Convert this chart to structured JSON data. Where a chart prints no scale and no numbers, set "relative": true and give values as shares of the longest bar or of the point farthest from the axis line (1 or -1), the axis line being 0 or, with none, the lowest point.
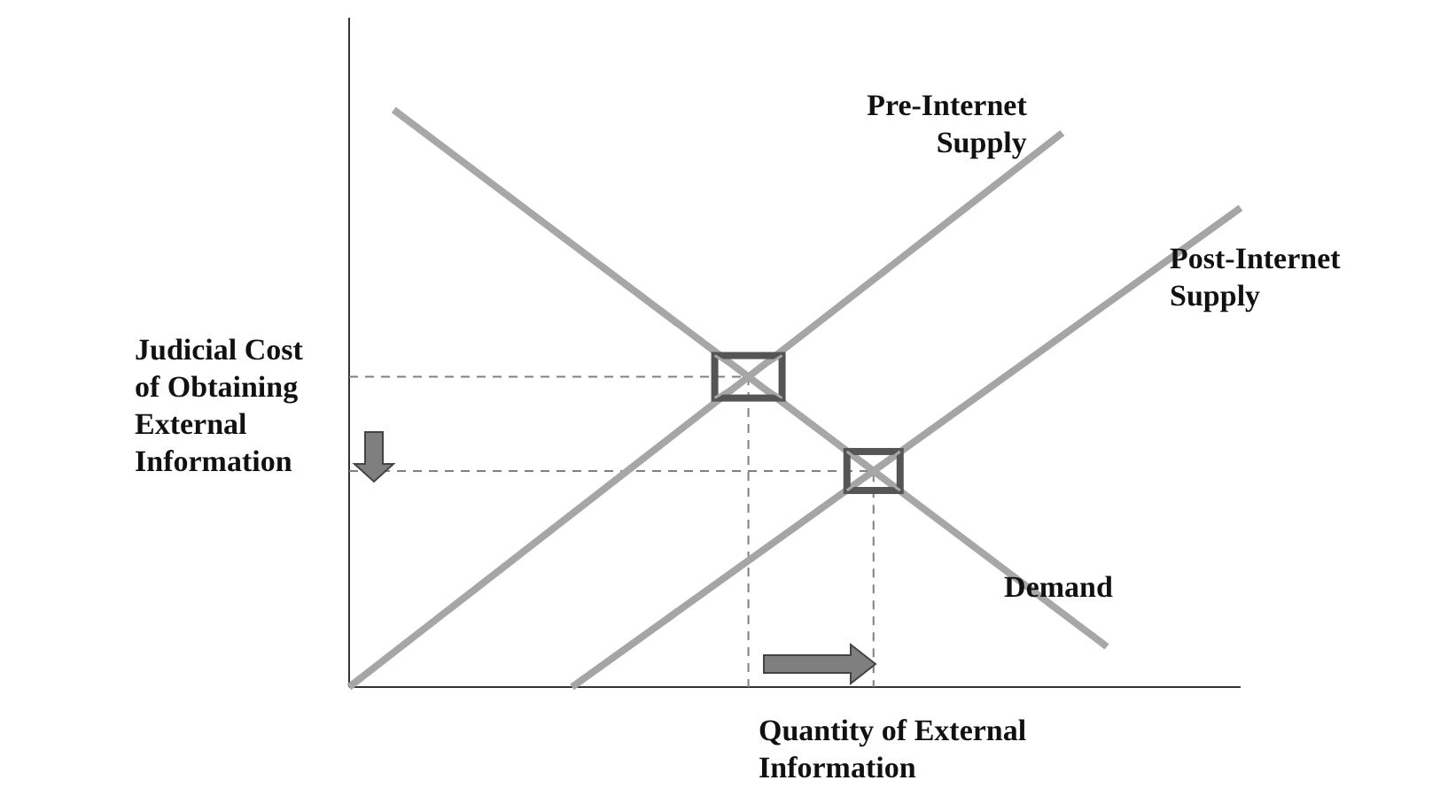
{
  "chart_data": {
    "type": "line",
    "relative": true,
    "legend": false,
    "xlabel": "Quantity of External Information",
    "ylabel": "Judicial Cost of Obtaining External Information",
    "categories": [
      null,
      null,
      null,
      null,
      null,
      null,
      null,
      null,
      null,
      null,
      null,
      null,
      null,
      null,
      null,
      null,
      null,
      null,
      null,
      null,
      null
    ],
    "series": [
      {
        "name": "Pre-Internet Supply",
        "color": "#a6a6a6",
        "values": [
          0,
          null,
          null,
          null,
          null,
          null,
          null,
          null,
          null,
          null,
          null,
          null,
          null,
          null,
          null,
          null,
          0.96,
          null,
          null,
          null,
          null
        ]
      },
      {
        "name": "Post-Internet Supply",
        "color": "#a5a5a5",
        "values": [
          null,
          null,
          null,
          null,
          null,
          0,
          null,
          null,
          null,
          null,
          null,
          null,
          null,
          null,
          null,
          null,
          null,
          null,
          null,
          null,
          0.83
        ]
      },
      {
        "name": "Demand",
        "color": "#a7a7a7",
        "values": [
          null,
          1,
          null,
          null,
          null,
          null,
          null,
          null,
          null,
          null,
          null,
          null,
          null,
          null,
          null,
          null,
          null,
          0.07,
          null,
          null,
          null
        ]
      }
    ]
  }
}
